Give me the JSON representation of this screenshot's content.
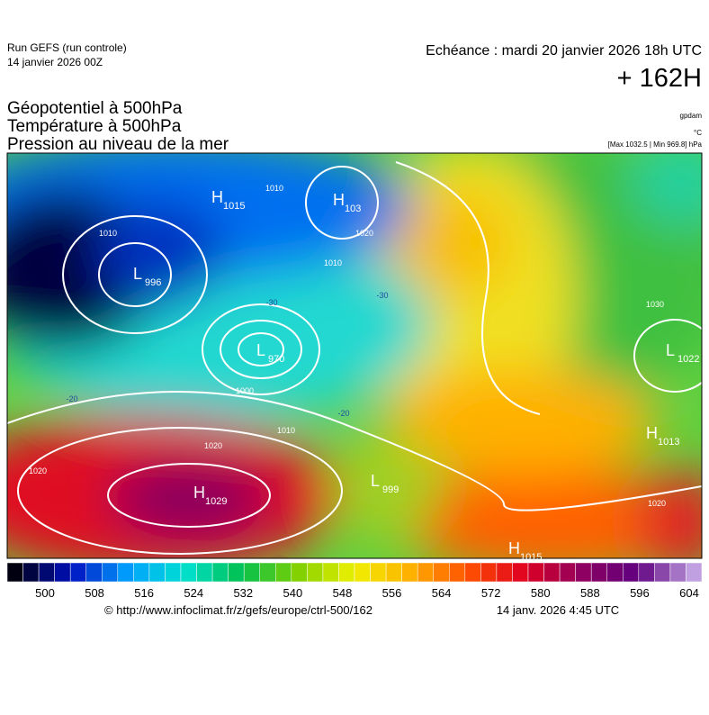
{
  "header": {
    "run": "Run GEFS (run controle)",
    "run_date": "14 janvier 2026 00Z",
    "valid": "Echéance : mardi 20 janvier 2026 18h UTC",
    "lead": "+ 162H"
  },
  "titles": [
    "Géopotentiel à 500hPa",
    "Température à 500hPa",
    "Pression au niveau de la mer"
  ],
  "units": {
    "geopotential": "gpdam",
    "temperature": "°C",
    "pressure": "[Max 1032.5 | Min 969.8] hPa"
  },
  "centers": [
    {
      "letter": "H",
      "value": "1015"
    },
    {
      "letter": "H",
      "value": "103"
    },
    {
      "letter": "L",
      "value": "996"
    },
    {
      "letter": "L",
      "value": "970"
    },
    {
      "letter": "H",
      "value": "1029"
    },
    {
      "letter": "L",
      "value": "1022"
    },
    {
      "letter": "H",
      "value": "1013"
    },
    {
      "letter": "L",
      "value": "999"
    },
    {
      "letter": "H",
      "value": "1015"
    }
  ],
  "contour_labels": [
    1010,
    1010,
    1010,
    1010,
    1020,
    1020,
    1020,
    1020,
    1000,
    1030,
    -20,
    -20,
    -30,
    -30
  ],
  "colorbar": {
    "labels": [
      500,
      508,
      516,
      524,
      532,
      540,
      548,
      556,
      564,
      572,
      580,
      588,
      596,
      604
    ],
    "stops": [
      "#000010",
      "#0010c0",
      "#00a0ff",
      "#00e0d0",
      "#00c050",
      "#80d000",
      "#f0f000",
      "#ffb000",
      "#ff5000",
      "#e00020",
      "#900060",
      "#600080",
      "#c0a0e0"
    ]
  },
  "footer": {
    "source": "© http://www.infoclimat.fr/z/gefs/europe/ctrl-500/162",
    "generated": "14 janv. 2026  4:45 UTC"
  }
}
